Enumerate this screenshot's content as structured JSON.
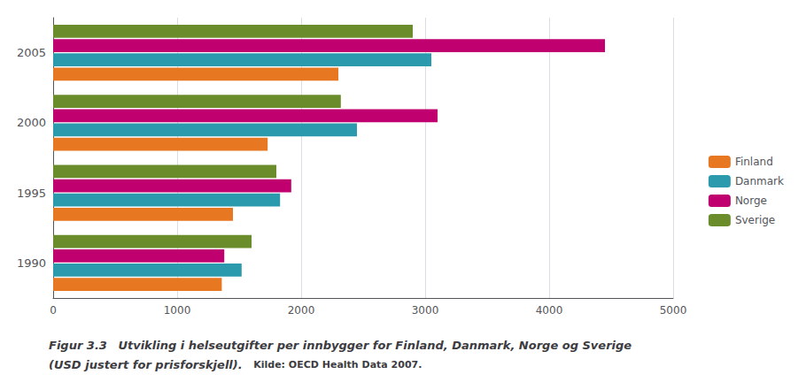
{
  "chart_data": {
    "type": "bar",
    "orientation": "horizontal",
    "title": "Figur 3.3",
    "subtitle": "Utvikling i helseutgifter per innbygger for Finland, Danmark, Norge og Sverige",
    "annotations": [
      "(USD justert for prisforskjell).",
      "Kilde: OECD Health Data 2007."
    ],
    "categories": [
      "1990",
      "1995",
      "2000",
      "2005"
    ],
    "series": [
      {
        "name": "Finland",
        "color": "#e87722",
        "values": [
          1360,
          1450,
          1730,
          2300
        ]
      },
      {
        "name": "Danmark",
        "color": "#2a9aac",
        "values": [
          1520,
          1830,
          2450,
          3050
        ]
      },
      {
        "name": "Norge",
        "color": "#c0006e",
        "values": [
          1380,
          1920,
          3100,
          4450
        ]
      },
      {
        "name": "Sverige",
        "color": "#6b8c2a",
        "values": [
          1600,
          1800,
          2320,
          2900
        ]
      }
    ],
    "xlim": [
      0,
      5000
    ],
    "xticks": [
      0,
      1000,
      2000,
      3000,
      4000,
      5000
    ],
    "grid": true,
    "legend": "right"
  }
}
